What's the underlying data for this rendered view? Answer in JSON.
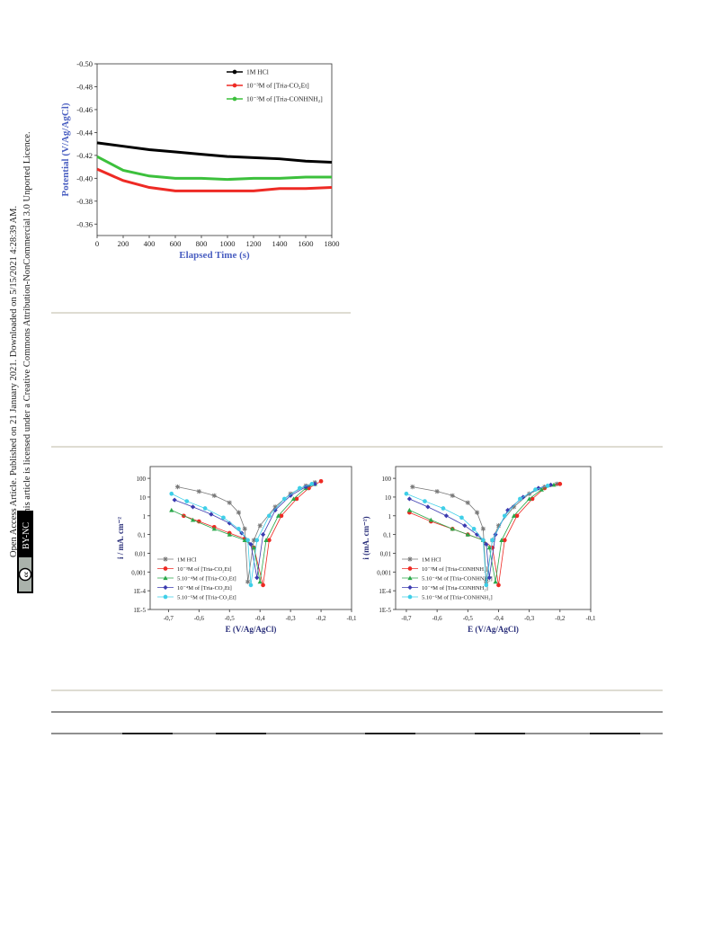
{
  "sidebar": {
    "line1": "Open Access Article. Published on 21 January 2021. Downloaded on 5/15/2021 4:28:39 AM.",
    "line2": "This article is licensed under a Creative Commons Attribution-NonCommercial 3.0 Unported Licence.",
    "badge": "BY-NC",
    "badge_icon": "cc"
  },
  "chart_data": [
    {
      "type": "line",
      "ylabel": "Potential (V/Ag/AgCl)",
      "xlabel": "Elapsed Time (s)",
      "x": [
        0,
        200,
        400,
        600,
        800,
        1000,
        1200,
        1400,
        1600,
        1800
      ],
      "xlim": [
        0,
        1800
      ],
      "xticks": [
        0,
        200,
        400,
        600,
        800,
        1000,
        1200,
        1400,
        1600,
        1800
      ],
      "ylim": [
        -0.5,
        -0.35
      ],
      "y_inverted": true,
      "yticks": [
        {
          "value": -0.5,
          "label": "-0.50"
        },
        -0.48,
        -0.46,
        -0.44,
        -0.42,
        {
          "value": -0.4,
          "label": "-0.40"
        },
        -0.38,
        -0.36
      ],
      "series": [
        {
          "name": "1M HCl",
          "color": "#000000",
          "values": [
            -0.431,
            -0.428,
            -0.425,
            -0.423,
            -0.421,
            -0.419,
            -0.418,
            -0.417,
            -0.415,
            -0.414
          ]
        },
        {
          "name": "10⁻³M of [Tria-CO₂Et]",
          "color": "#ee2a24",
          "values": [
            -0.408,
            -0.398,
            -0.392,
            -0.389,
            -0.389,
            -0.389,
            -0.389,
            -0.391,
            -0.391,
            -0.392
          ]
        },
        {
          "name": "10⁻³M of [Tria-CONHNH₂]",
          "color": "#3cc03c",
          "values": [
            -0.419,
            -0.407,
            -0.402,
            -0.4,
            -0.4,
            -0.399,
            -0.4,
            -0.4,
            -0.401,
            -0.401
          ]
        }
      ]
    },
    {
      "type": "tafel",
      "ylabel": "i / mA. cm⁻²",
      "xlabel": "E (V/Ag/AgCl)",
      "log_y": true,
      "xlim": [
        -0.76,
        -0.1
      ],
      "xticks": [
        {
          "value": -0.7,
          "label": "-0,7"
        },
        {
          "value": -0.6,
          "label": "-0,6"
        },
        {
          "value": -0.5,
          "label": "-0,5"
        },
        {
          "value": -0.4,
          "label": "-0,4"
        },
        {
          "value": -0.3,
          "label": "-0,3"
        },
        {
          "value": -0.2,
          "label": "-0,2"
        },
        {
          "value": -0.1,
          "label": "-0,1"
        }
      ],
      "ylim": [
        1e-05,
        425
      ],
      "yticks": [
        100,
        10,
        1,
        {
          "value": 0.1,
          "label": "0,1"
        },
        {
          "value": 0.01,
          "label": "0,01"
        },
        {
          "value": 0.001,
          "label": "0,001"
        },
        {
          "value": 0.0001,
          "label": "1E-4"
        },
        {
          "value": 1e-05,
          "label": "1E-5"
        }
      ],
      "series": [
        {
          "name": "1M HCl",
          "color": "#777777",
          "marker": "star",
          "x": [
            -0.67,
            -0.6,
            -0.55,
            -0.5,
            -0.47,
            -0.45,
            -0.44,
            -0.42,
            -0.4,
            -0.35,
            -0.3,
            -0.25,
            -0.22
          ],
          "values": [
            35,
            20,
            12,
            5,
            1.5,
            0.2,
            0.0003,
            0.05,
            0.3,
            3,
            15,
            40,
            60
          ]
        },
        {
          "name": "10⁻³M   of [Tria-CO₂Et]",
          "color": "#ee2a24",
          "marker": "circle",
          "x": [
            -0.65,
            -0.6,
            -0.55,
            -0.5,
            -0.45,
            -0.42,
            -0.39,
            -0.37,
            -0.33,
            -0.28,
            -0.24,
            -0.2
          ],
          "values": [
            1,
            0.5,
            0.25,
            0.12,
            0.06,
            0.02,
            0.0002,
            0.05,
            1,
            8,
            30,
            70
          ]
        },
        {
          "name": "5.10⁻⁴M of [Tria-CO₂Et]",
          "color": "#2aa84a",
          "marker": "triangle",
          "x": [
            -0.69,
            -0.62,
            -0.55,
            -0.5,
            -0.45,
            -0.42,
            -0.4,
            -0.38,
            -0.34,
            -0.29,
            -0.25,
            -0.22
          ],
          "values": [
            2,
            0.6,
            0.2,
            0.1,
            0.05,
            0.02,
            0.0003,
            0.05,
            1,
            8,
            30,
            50
          ]
        },
        {
          "name": "10⁻⁴M   of [Tria-CO₂Et]",
          "color": "#3b3bb0",
          "marker": "diamond",
          "x": [
            -0.68,
            -0.62,
            -0.56,
            -0.5,
            -0.46,
            -0.43,
            -0.41,
            -0.39,
            -0.35,
            -0.3,
            -0.25,
            -0.22
          ],
          "values": [
            7,
            3,
            1.2,
            0.4,
            0.12,
            0.03,
            0.0005,
            0.1,
            2,
            12,
            35,
            50
          ]
        },
        {
          "name": "5.10⁻⁵M of [Tria-CO₂Et]",
          "color": "#3fcfe8",
          "marker": "circle",
          "x": [
            -0.69,
            -0.64,
            -0.58,
            -0.52,
            -0.47,
            -0.44,
            -0.43,
            -0.41,
            -0.37,
            -0.32,
            -0.27,
            -0.23
          ],
          "values": [
            15,
            6,
            2.5,
            0.8,
            0.2,
            0.05,
            0.0002,
            0.05,
            1,
            8,
            30,
            50
          ]
        }
      ]
    },
    {
      "type": "tafel",
      "ylabel": "i (mA. cm⁻²)",
      "xlabel": "E (V/Ag/AgCl)",
      "log_y": true,
      "xlim": [
        -0.735,
        -0.1
      ],
      "xticks": [
        {
          "value": -0.7,
          "label": "-0,7"
        },
        {
          "value": -0.6,
          "label": "-0,6"
        },
        {
          "value": -0.5,
          "label": "-0,5"
        },
        {
          "value": -0.4,
          "label": "-0,4"
        },
        {
          "value": -0.3,
          "label": "-0,3"
        },
        {
          "value": -0.2,
          "label": "-0,2"
        },
        {
          "value": -0.1,
          "label": "-0,1"
        }
      ],
      "ylim": [
        1e-05,
        425
      ],
      "yticks": [
        100,
        10,
        1,
        {
          "value": 0.1,
          "label": "0,1"
        },
        {
          "value": 0.01,
          "label": "0,01"
        },
        {
          "value": 0.001,
          "label": "0,001"
        },
        {
          "value": 0.0001,
          "label": "1E-4"
        },
        {
          "value": 1e-05,
          "label": "1E-5"
        }
      ],
      "series": [
        {
          "name": "1M HCl",
          "color": "#777777",
          "marker": "star",
          "x": [
            -0.68,
            -0.6,
            -0.55,
            -0.5,
            -0.47,
            -0.45,
            -0.44,
            -0.42,
            -0.4,
            -0.35,
            -0.3,
            -0.25,
            -0.21
          ],
          "values": [
            35,
            20,
            12,
            5,
            1.5,
            0.2,
            0.0003,
            0.05,
            0.3,
            3,
            15,
            35,
            50
          ]
        },
        {
          "name": "10⁻³M   of [Tria-CONHNH₂]",
          "color": "#ee2a24",
          "marker": "circle",
          "x": [
            -0.69,
            -0.62,
            -0.55,
            -0.5,
            -0.45,
            -0.42,
            -0.4,
            -0.38,
            -0.34,
            -0.29,
            -0.25,
            -0.2
          ],
          "values": [
            1.5,
            0.5,
            0.2,
            0.1,
            0.05,
            0.02,
            0.0002,
            0.05,
            1,
            8,
            30,
            50
          ]
        },
        {
          "name": "5.10⁻⁴M of [Tria-CONHNH₂]",
          "color": "#2aa84a",
          "marker": "triangle",
          "x": [
            -0.69,
            -0.62,
            -0.55,
            -0.5,
            -0.45,
            -0.43,
            -0.41,
            -0.39,
            -0.35,
            -0.3,
            -0.26,
            -0.22
          ],
          "values": [
            2,
            0.6,
            0.2,
            0.1,
            0.05,
            0.02,
            0.0003,
            0.05,
            1,
            8,
            25,
            45
          ]
        },
        {
          "name": "10⁻⁴M   of [Tria-CONHNH₂]",
          "color": "#3b3bb0",
          "marker": "diamond",
          "x": [
            -0.69,
            -0.63,
            -0.57,
            -0.51,
            -0.47,
            -0.44,
            -0.43,
            -0.41,
            -0.37,
            -0.32,
            -0.27,
            -0.23
          ],
          "values": [
            8,
            3,
            1,
            0.3,
            0.1,
            0.03,
            0.0005,
            0.1,
            2,
            10,
            30,
            45
          ]
        },
        {
          "name": "5.10⁻⁵M of [Tria-CONHNH₂]",
          "color": "#3fcfe8",
          "marker": "circle",
          "x": [
            -0.7,
            -0.64,
            -0.58,
            -0.52,
            -0.48,
            -0.45,
            -0.44,
            -0.42,
            -0.38,
            -0.33,
            -0.28,
            -0.24
          ],
          "values": [
            15,
            6,
            2.5,
            0.8,
            0.2,
            0.05,
            0.0002,
            0.05,
            1,
            8,
            25,
            40
          ]
        }
      ]
    }
  ]
}
